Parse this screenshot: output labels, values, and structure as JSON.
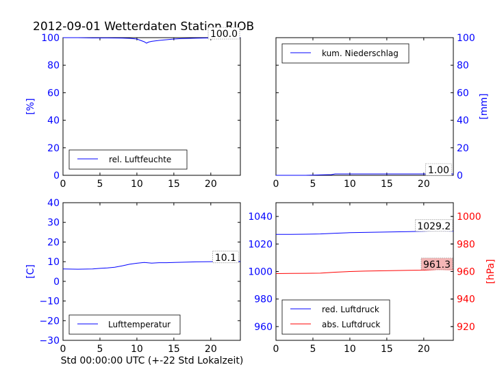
{
  "title": "2012-09-01 Wetterdaten Station RJOB",
  "xlabel": "Std 00:00:00 UTC (+-22 Std Lokalzeit)",
  "colors": {
    "blue": "#0000ff",
    "red": "#ff0000",
    "black": "#000000"
  },
  "chart_data": [
    {
      "type": "line",
      "panel": "top-left",
      "ylabel": "[%]",
      "xlim": [
        0,
        24
      ],
      "ylim": [
        0,
        100
      ],
      "xticks": [
        0,
        5,
        10,
        15,
        20
      ],
      "yticks": [
        0,
        20,
        40,
        60,
        80,
        100
      ],
      "legend_position": "lower-left",
      "annotation": "100.0",
      "series": [
        {
          "name": "rel. Luftfeuchte",
          "color": "#0000ff",
          "x": [
            0,
            2,
            4,
            6,
            8,
            9,
            10,
            10.5,
            11,
            11.3,
            11.6,
            12,
            13,
            14,
            15,
            16,
            18,
            20,
            22,
            24
          ],
          "y": [
            100,
            100,
            99.8,
            99.8,
            99.7,
            99.5,
            99,
            98,
            97,
            96,
            96.8,
            97.3,
            98,
            98.5,
            99,
            99.3,
            99.6,
            99.8,
            99.9,
            100
          ]
        }
      ]
    },
    {
      "type": "line",
      "panel": "top-right",
      "ylabel": "[mm]",
      "xlim": [
        0,
        24
      ],
      "ylim": [
        0,
        100
      ],
      "xticks": [
        0,
        5,
        10,
        15,
        20
      ],
      "yticks": [
        0,
        20,
        40,
        60,
        80,
        100
      ],
      "legend_position": "upper-left",
      "annotation": "1.00",
      "series": [
        {
          "name": "kum. Niederschlag",
          "color": "#0000ff",
          "x": [
            0,
            4,
            6,
            7.5,
            8,
            10,
            14,
            18,
            22,
            24
          ],
          "y": [
            0,
            0,
            0.3,
            0.5,
            1,
            1,
            1,
            1,
            1,
            1
          ]
        }
      ]
    },
    {
      "type": "line",
      "panel": "bottom-left",
      "ylabel": "[C]",
      "xlim": [
        0,
        24
      ],
      "ylim": [
        -30,
        40
      ],
      "xticks": [
        0,
        5,
        10,
        15,
        20
      ],
      "yticks": [
        -30,
        -20,
        -10,
        0,
        10,
        20,
        30,
        40
      ],
      "legend_position": "lower-left",
      "annotation": "10.1",
      "series": [
        {
          "name": "Lufttemperatur",
          "color": "#0000ff",
          "x": [
            0,
            2,
            4,
            5,
            6,
            7,
            8,
            9,
            10,
            11,
            12,
            13,
            14,
            16,
            18,
            20,
            22,
            24
          ],
          "y": [
            6.3,
            6.2,
            6.3,
            6.6,
            6.8,
            7.2,
            7.9,
            8.7,
            9.2,
            9.6,
            9.3,
            9.5,
            9.5,
            9.7,
            9.9,
            10.0,
            10.1,
            10.1
          ]
        }
      ]
    },
    {
      "type": "line",
      "panel": "bottom-right",
      "ylabel": "[hPa]",
      "xlim": [
        0,
        24
      ],
      "ylim": [
        950,
        1050
      ],
      "y2lim": [
        910,
        1010
      ],
      "xticks": [
        0,
        5,
        10,
        15,
        20
      ],
      "yticks": [
        960,
        980,
        1000,
        1020,
        1040
      ],
      "y2ticks": [
        920,
        940,
        960,
        980,
        1000
      ],
      "legend_position": "lower-left",
      "annotations": [
        "1029.2",
        "961.3"
      ],
      "series": [
        {
          "name": "red. Luftdruck",
          "color": "#0000ff",
          "axis": "left",
          "x": [
            0,
            2,
            4,
            6,
            8,
            10,
            12,
            14,
            16,
            18,
            20,
            22,
            23,
            24
          ],
          "y": [
            1027.0,
            1027.0,
            1027.1,
            1027.3,
            1027.8,
            1028.2,
            1028.4,
            1028.6,
            1028.8,
            1029.0,
            1029.2,
            1029.6,
            1029.4,
            1029.2
          ]
        },
        {
          "name": "abs. Luftdruck",
          "color": "#ff0000",
          "axis": "right",
          "x": [
            0,
            2,
            4,
            6,
            8,
            10,
            12,
            14,
            16,
            18,
            20,
            22,
            23,
            24
          ],
          "y": [
            958.5,
            958.6,
            958.7,
            958.8,
            959.5,
            960.0,
            960.3,
            960.5,
            960.7,
            960.9,
            961.0,
            961.5,
            961.4,
            961.3
          ]
        }
      ]
    }
  ]
}
